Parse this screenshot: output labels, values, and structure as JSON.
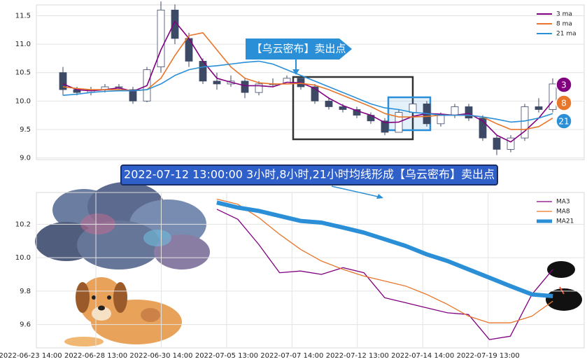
{
  "chart_data": [
    {
      "type": "candlestick",
      "annotation": "【乌云密布】卖出点",
      "xlim": [
        -1.9,
        37.25
      ],
      "ylim": [
        8.97,
        11.69
      ],
      "yticks": [
        11.5,
        {
          "value": 11,
          "label": "11.0"
        },
        10.5,
        {
          "value": 10,
          "label": "10.0"
        },
        9.5,
        {
          "value": 9,
          "label": "9.0"
        }
      ],
      "grid": true,
      "legend": "upper right",
      "up_color": "#ffffff",
      "down_color": "#3d4a66",
      "open": [
        10.5,
        10.2,
        10.15,
        10.2,
        10.25,
        10.2,
        10.0,
        10.6,
        11.6,
        11.1,
        10.7,
        10.35,
        10.3,
        10.35,
        10.15,
        10.3,
        10.3,
        10.4,
        10.25,
        10.0,
        9.9,
        9.85,
        9.75,
        9.65,
        9.45,
        9.8,
        9.95,
        9.6,
        9.75,
        9.9,
        9.7,
        9.35,
        9.15,
        9.35,
        9.9,
        9.85
      ],
      "high": [
        10.6,
        10.25,
        10.25,
        10.3,
        10.3,
        10.25,
        10.6,
        11.75,
        11.7,
        11.2,
        10.75,
        10.5,
        10.45,
        10.4,
        10.35,
        10.4,
        10.45,
        10.45,
        10.3,
        10.05,
        9.95,
        9.9,
        9.8,
        9.7,
        9.85,
        10.05,
        10.0,
        9.8,
        9.95,
        9.95,
        9.75,
        9.4,
        9.4,
        9.95,
        10.05,
        10.4
      ],
      "low": [
        10.1,
        10.1,
        10.1,
        10.15,
        10.2,
        9.95,
        9.98,
        10.5,
        11.0,
        10.6,
        10.3,
        10.2,
        10.25,
        10.05,
        10.1,
        10.25,
        10.3,
        10.2,
        9.95,
        9.85,
        9.8,
        9.7,
        9.6,
        9.4,
        9.45,
        9.75,
        9.55,
        9.55,
        9.7,
        9.65,
        9.3,
        9.05,
        9.1,
        9.3,
        9.8,
        9.8
      ],
      "close": [
        10.2,
        10.15,
        10.2,
        10.25,
        10.25,
        10.0,
        10.55,
        11.6,
        11.1,
        10.7,
        10.35,
        10.3,
        10.35,
        10.15,
        10.3,
        10.3,
        10.4,
        10.25,
        10.0,
        9.9,
        9.85,
        9.75,
        9.65,
        9.45,
        9.8,
        9.95,
        9.6,
        9.75,
        9.9,
        9.7,
        9.35,
        9.15,
        9.35,
        9.9,
        9.85,
        10.3
      ],
      "series": [
        {
          "name": "3 ma",
          "color": "#800080",
          "end_label": "3",
          "values": [
            10.3,
            10.2,
            10.18,
            10.2,
            10.23,
            10.17,
            10.27,
            10.9,
            11.4,
            11.1,
            10.7,
            10.4,
            10.33,
            10.27,
            10.27,
            10.25,
            10.33,
            10.32,
            10.22,
            10.05,
            9.92,
            9.83,
            9.75,
            9.62,
            9.63,
            9.73,
            9.78,
            9.77,
            9.75,
            9.78,
            9.65,
            9.4,
            9.28,
            9.47,
            9.7,
            10.0
          ]
        },
        {
          "name": "8 ma",
          "color": "#e8762b",
          "end_label": "8",
          "values": [
            10.25,
            10.22,
            10.2,
            10.2,
            10.2,
            10.18,
            10.2,
            10.4,
            10.8,
            11.15,
            11.2,
            10.9,
            10.6,
            10.4,
            10.32,
            10.3,
            10.3,
            10.31,
            10.28,
            10.2,
            10.1,
            10.0,
            9.9,
            9.78,
            9.72,
            9.72,
            9.73,
            9.75,
            9.75,
            9.75,
            9.72,
            9.6,
            9.5,
            9.5,
            9.55,
            9.7
          ]
        },
        {
          "name": "21 ma",
          "color": "#2a8fd6",
          "end_label": "21",
          "values": [
            10.1,
            10.12,
            10.15,
            10.17,
            10.18,
            10.18,
            10.2,
            10.3,
            10.45,
            10.55,
            10.6,
            10.62,
            10.65,
            10.68,
            10.7,
            10.65,
            10.55,
            10.45,
            10.35,
            10.25,
            10.15,
            10.05,
            9.95,
            9.88,
            9.85,
            9.8,
            9.78,
            9.75,
            9.75,
            9.75,
            9.72,
            9.68,
            9.63,
            9.65,
            9.7,
            9.78
          ]
        }
      ]
    },
    {
      "type": "line",
      "title": "2022-07-12 13:00:00 3小时,8小时,21小时均线形成【乌云密布】卖出点",
      "xlim": [
        0.09,
        8.47
      ],
      "xticks": [
        {
          "value": 0,
          "label": "2022-06-23 14:00"
        },
        {
          "value": 1,
          "label": "2022-06-28 13:00"
        },
        {
          "value": 2,
          "label": "2022-06-30 14:00"
        },
        {
          "value": 3,
          "label": "2022-07-05 13:00"
        },
        {
          "value": 4,
          "label": "2022-07-07 14:00"
        },
        {
          "value": 5,
          "label": "2022-07-12 13:00"
        },
        {
          "value": 6,
          "label": "2022-07-14 14:00"
        },
        {
          "value": 7,
          "label": "2022-07-19 13:00"
        }
      ],
      "ylim": [
        9.46,
        10.39
      ],
      "yticks": [
        9.6,
        9.8,
        {
          "value": 10,
          "label": "10.0"
        },
        10.2
      ],
      "grid": true,
      "legend": "upper right",
      "x": [
        2.85,
        3.17,
        3.49,
        3.81,
        4.13,
        4.45,
        4.78,
        5.1,
        5.42,
        5.74,
        6.06,
        6.38,
        6.7,
        7.02,
        7.34,
        7.67,
        7.99
      ],
      "series": [
        {
          "name": "MA3",
          "color": "#800080",
          "width": 1.3,
          "values": [
            10.29,
            10.23,
            10.08,
            9.91,
            9.92,
            9.9,
            9.94,
            9.91,
            9.76,
            9.73,
            9.7,
            9.67,
            9.66,
            9.51,
            9.53,
            9.78,
            9.93
          ]
        },
        {
          "name": "MA8",
          "color": "#e8762b",
          "width": 1.3,
          "values": [
            10.35,
            10.32,
            10.24,
            10.14,
            10.05,
            9.98,
            9.93,
            9.89,
            9.86,
            9.83,
            9.78,
            9.72,
            9.65,
            9.61,
            9.61,
            9.65,
            9.74
          ]
        },
        {
          "name": "MA21",
          "color": "#2a8fd6",
          "width": 6,
          "values": [
            10.33,
            10.3,
            10.28,
            10.25,
            10.22,
            10.21,
            10.18,
            10.15,
            10.11,
            10.07,
            10.02,
            9.98,
            9.93,
            9.88,
            9.83,
            9.78,
            9.77
          ]
        }
      ]
    }
  ]
}
